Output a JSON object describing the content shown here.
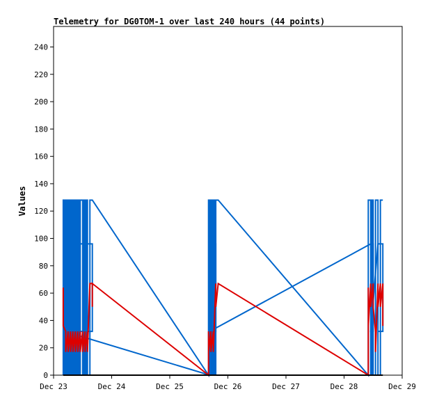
{
  "chart_data": {
    "type": "line",
    "title": "Telemetry for DG0TOM-1 over last 240 hours (44 points)",
    "xlabel": "",
    "ylabel": "Values",
    "ylim": [
      0,
      255
    ],
    "yticks": [
      0,
      20,
      40,
      60,
      80,
      100,
      120,
      140,
      160,
      180,
      200,
      220,
      240
    ],
    "xlim": [
      "2023-12-23T00:00",
      "2023-12-29T00:00"
    ],
    "xticks": [
      {
        "label": "Dec 23",
        "date": "2023-12-23T00:00"
      },
      {
        "label": "Dec 24",
        "date": "2023-12-24T00:00"
      },
      {
        "label": "Dec 25",
        "date": "2023-12-25T00:00"
      },
      {
        "label": "Dec 26",
        "date": "2023-12-26T00:00"
      },
      {
        "label": "Dec 27",
        "date": "2023-12-27T00:00"
      },
      {
        "label": "Dec 28",
        "date": "2023-12-28T00:00"
      },
      {
        "label": "Dec 29",
        "date": "2023-12-29T00:00"
      }
    ],
    "grid": false,
    "series": [
      {
        "color": "#0066cc",
        "points": [
          {
            "x": "2023-12-23T04:00",
            "y": 0
          },
          {
            "x": "2023-12-23T04:00",
            "y": 128
          },
          {
            "x": "2023-12-23T04:30",
            "y": 128
          },
          {
            "x": "2023-12-23T04:30",
            "y": 0
          },
          {
            "x": "2023-12-23T05:00",
            "y": 0
          },
          {
            "x": "2023-12-23T05:00",
            "y": 128
          },
          {
            "x": "2023-12-23T05:30",
            "y": 128
          },
          {
            "x": "2023-12-23T05:30",
            "y": 0
          },
          {
            "x": "2023-12-23T06:00",
            "y": 0
          },
          {
            "x": "2023-12-23T06:00",
            "y": 128
          },
          {
            "x": "2023-12-23T06:30",
            "y": 128
          },
          {
            "x": "2023-12-23T06:30",
            "y": 0
          },
          {
            "x": "2023-12-23T07:00",
            "y": 0
          },
          {
            "x": "2023-12-23T07:00",
            "y": 128
          },
          {
            "x": "2023-12-23T07:30",
            "y": 128
          },
          {
            "x": "2023-12-23T07:30",
            "y": 0
          },
          {
            "x": "2023-12-23T08:00",
            "y": 0
          },
          {
            "x": "2023-12-23T08:00",
            "y": 128
          },
          {
            "x": "2023-12-23T08:30",
            "y": 128
          },
          {
            "x": "2023-12-23T08:30",
            "y": 0
          },
          {
            "x": "2023-12-23T09:00",
            "y": 0
          },
          {
            "x": "2023-12-23T09:00",
            "y": 128
          },
          {
            "x": "2023-12-23T09:30",
            "y": 128
          },
          {
            "x": "2023-12-23T09:30",
            "y": 0
          },
          {
            "x": "2023-12-23T10:00",
            "y": 0
          },
          {
            "x": "2023-12-23T10:00",
            "y": 128
          },
          {
            "x": "2023-12-23T10:30",
            "y": 128
          },
          {
            "x": "2023-12-23T10:30",
            "y": 0
          },
          {
            "x": "2023-12-23T11:00",
            "y": 0
          },
          {
            "x": "2023-12-23T11:00",
            "y": 128
          },
          {
            "x": "2023-12-23T12:00",
            "y": 128
          },
          {
            "x": "2023-12-23T12:00",
            "y": 0
          },
          {
            "x": "2023-12-23T12:30",
            "y": 0
          },
          {
            "x": "2023-12-23T12:30",
            "y": 128
          },
          {
            "x": "2023-12-23T13:00",
            "y": 128
          },
          {
            "x": "2023-12-23T13:00",
            "y": 0
          },
          {
            "x": "2023-12-23T13:30",
            "y": 0
          },
          {
            "x": "2023-12-23T13:30",
            "y": 128
          },
          {
            "x": "2023-12-23T14:00",
            "y": 128
          },
          {
            "x": "2023-12-23T14:00",
            "y": 0
          },
          {
            "x": "2023-12-23T15:00",
            "y": 0
          },
          {
            "x": "2023-12-23T15:00",
            "y": 128
          },
          {
            "x": "2023-12-23T16:00",
            "y": 128
          },
          {
            "x": "2023-12-25T16:00",
            "y": 0
          },
          {
            "x": "2023-12-25T16:00",
            "y": 128
          },
          {
            "x": "2023-12-25T16:30",
            "y": 128
          },
          {
            "x": "2023-12-25T16:30",
            "y": 0
          },
          {
            "x": "2023-12-25T17:00",
            "y": 0
          },
          {
            "x": "2023-12-25T17:00",
            "y": 128
          },
          {
            "x": "2023-12-25T17:30",
            "y": 128
          },
          {
            "x": "2023-12-25T17:30",
            "y": 0
          },
          {
            "x": "2023-12-25T18:00",
            "y": 0
          },
          {
            "x": "2023-12-25T18:00",
            "y": 128
          },
          {
            "x": "2023-12-25T18:30",
            "y": 128
          },
          {
            "x": "2023-12-25T18:30",
            "y": 0
          },
          {
            "x": "2023-12-25T19:00",
            "y": 0
          },
          {
            "x": "2023-12-25T19:00",
            "y": 128
          },
          {
            "x": "2023-12-25T20:00",
            "y": 128
          },
          {
            "x": "2023-12-28T10:00",
            "y": 0
          },
          {
            "x": "2023-12-28T10:00",
            "y": 128
          },
          {
            "x": "2023-12-28T11:00",
            "y": 128
          },
          {
            "x": "2023-12-28T11:00",
            "y": 0
          },
          {
            "x": "2023-12-28T11:30",
            "y": 0
          },
          {
            "x": "2023-12-28T11:30",
            "y": 128
          },
          {
            "x": "2023-12-28T12:00",
            "y": 128
          },
          {
            "x": "2023-12-28T12:00",
            "y": 0
          },
          {
            "x": "2023-12-28T13:00",
            "y": 0
          },
          {
            "x": "2023-12-28T13:00",
            "y": 128
          },
          {
            "x": "2023-12-28T14:00",
            "y": 128
          },
          {
            "x": "2023-12-28T14:00",
            "y": 0
          },
          {
            "x": "2023-12-28T15:00",
            "y": 0
          },
          {
            "x": "2023-12-28T15:00",
            "y": 128
          },
          {
            "x": "2023-12-28T16:00",
            "y": 128
          }
        ]
      },
      {
        "color": "#0066cc",
        "points": [
          {
            "x": "2023-12-23T04:30",
            "y": 0
          },
          {
            "x": "2023-12-23T04:30",
            "y": 96
          },
          {
            "x": "2023-12-23T16:00",
            "y": 96
          },
          {
            "x": "2023-12-23T16:00",
            "y": 32
          },
          {
            "x": "2023-12-23T04:30",
            "y": 32
          },
          {
            "x": "2023-12-25T16:30",
            "y": 0
          },
          {
            "x": "2023-12-25T16:30",
            "y": 96
          },
          {
            "x": "2023-12-25T19:00",
            "y": 96
          },
          {
            "x": "2023-12-25T19:00",
            "y": 32
          },
          {
            "x": "2023-12-25T16:30",
            "y": 32
          },
          {
            "x": "2023-12-28T11:00",
            "y": 96
          },
          {
            "x": "2023-12-28T12:00",
            "y": 96
          },
          {
            "x": "2023-12-28T12:00",
            "y": 32
          },
          {
            "x": "2023-12-28T11:00",
            "y": 32
          },
          {
            "x": "2023-12-28T14:00",
            "y": 96
          },
          {
            "x": "2023-12-28T16:00",
            "y": 96
          },
          {
            "x": "2023-12-28T16:00",
            "y": 32
          },
          {
            "x": "2023-12-28T14:00",
            "y": 32
          }
        ]
      },
      {
        "color": "#dd0000",
        "points": [
          {
            "x": "2023-12-23T04:00",
            "y": 64
          },
          {
            "x": "2023-12-23T04:00",
            "y": 36
          },
          {
            "x": "2023-12-23T05:00",
            "y": 32
          },
          {
            "x": "2023-12-23T05:00",
            "y": 17
          },
          {
            "x": "2023-12-23T06:00",
            "y": 32
          },
          {
            "x": "2023-12-23T06:00",
            "y": 17
          },
          {
            "x": "2023-12-23T07:00",
            "y": 32
          },
          {
            "x": "2023-12-23T07:00",
            "y": 17
          },
          {
            "x": "2023-12-23T08:00",
            "y": 32
          },
          {
            "x": "2023-12-23T08:00",
            "y": 17
          },
          {
            "x": "2023-12-23T09:00",
            "y": 32
          },
          {
            "x": "2023-12-23T09:00",
            "y": 17
          },
          {
            "x": "2023-12-23T10:00",
            "y": 32
          },
          {
            "x": "2023-12-23T10:00",
            "y": 17
          },
          {
            "x": "2023-12-23T11:00",
            "y": 32
          },
          {
            "x": "2023-12-23T11:00",
            "y": 17
          },
          {
            "x": "2023-12-23T12:00",
            "y": 32
          },
          {
            "x": "2023-12-23T12:00",
            "y": 17
          },
          {
            "x": "2023-12-23T13:00",
            "y": 32
          },
          {
            "x": "2023-12-23T13:00",
            "y": 17
          },
          {
            "x": "2023-12-23T14:00",
            "y": 32
          },
          {
            "x": "2023-12-23T14:00",
            "y": 17
          },
          {
            "x": "2023-12-23T15:00",
            "y": 67
          },
          {
            "x": "2023-12-23T16:00",
            "y": 67
          },
          {
            "x": "2023-12-23T16:00",
            "y": 50
          },
          {
            "x": "2023-12-23T16:00",
            "y": 67
          },
          {
            "x": "2023-12-25T16:00",
            "y": 0
          },
          {
            "x": "2023-12-25T16:00",
            "y": 32
          },
          {
            "x": "2023-12-25T16:00",
            "y": 17
          },
          {
            "x": "2023-12-25T17:00",
            "y": 32
          },
          {
            "x": "2023-12-25T17:00",
            "y": 17
          },
          {
            "x": "2023-12-25T18:00",
            "y": 32
          },
          {
            "x": "2023-12-25T18:00",
            "y": 17
          },
          {
            "x": "2023-12-25T19:00",
            "y": 67
          },
          {
            "x": "2023-12-25T19:00",
            "y": 50
          },
          {
            "x": "2023-12-25T20:00",
            "y": 67
          },
          {
            "x": "2023-12-28T10:00",
            "y": 0
          },
          {
            "x": "2023-12-28T10:00",
            "y": 64
          },
          {
            "x": "2023-12-28T10:00",
            "y": 36
          },
          {
            "x": "2023-12-28T11:00",
            "y": 67
          },
          {
            "x": "2023-12-28T11:00",
            "y": 50
          },
          {
            "x": "2023-12-28T12:00",
            "y": 67
          },
          {
            "x": "2023-12-28T12:00",
            "y": 50
          },
          {
            "x": "2023-12-28T13:00",
            "y": 32
          },
          {
            "x": "2023-12-28T13:00",
            "y": 17
          },
          {
            "x": "2023-12-28T14:00",
            "y": 67
          },
          {
            "x": "2023-12-28T14:00",
            "y": 50
          },
          {
            "x": "2023-12-28T15:00",
            "y": 67
          },
          {
            "x": "2023-12-28T15:00",
            "y": 50
          },
          {
            "x": "2023-12-28T16:00",
            "y": 67
          },
          {
            "x": "2023-12-28T16:00",
            "y": 36
          }
        ]
      },
      {
        "color": "#000000",
        "points": [
          {
            "x": "2023-12-23T04:00",
            "y": 0
          },
          {
            "x": "2023-12-28T16:00",
            "y": 0
          }
        ]
      }
    ]
  }
}
